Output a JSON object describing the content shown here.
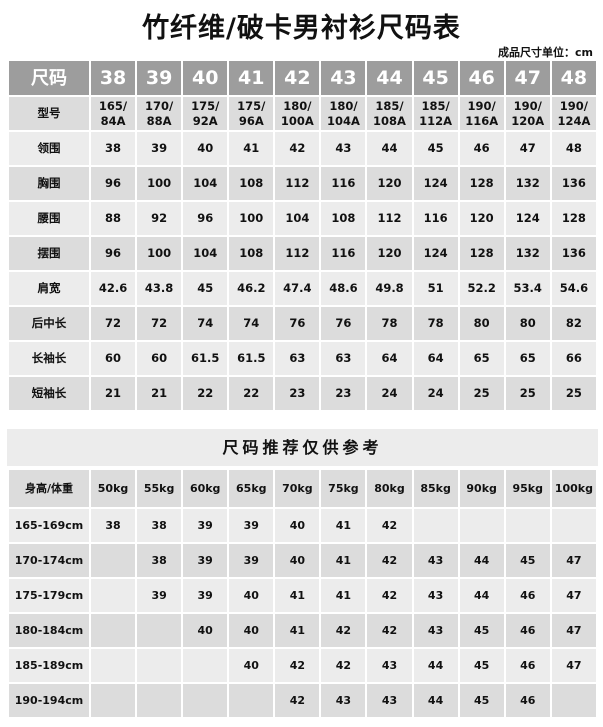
{
  "title": "竹纤维/破卡男衬衫尺码表",
  "unit_note": "成品尺寸单位：cm",
  "size_table": {
    "header": [
      "尺码",
      "38",
      "39",
      "40",
      "41",
      "42",
      "43",
      "44",
      "45",
      "46",
      "47",
      "48"
    ],
    "rows": [
      {
        "label": "型号",
        "values": [
          [
            "165/",
            "84A"
          ],
          [
            "170/",
            "88A"
          ],
          [
            "175/",
            "92A"
          ],
          [
            "175/",
            "96A"
          ],
          [
            "180/",
            "100A"
          ],
          [
            "180/",
            "104A"
          ],
          [
            "185/",
            "108A"
          ],
          [
            "185/",
            "112A"
          ],
          [
            "190/",
            "116A"
          ],
          [
            "190/",
            "120A"
          ],
          [
            "190/",
            "124A"
          ]
        ]
      },
      {
        "label": "领围",
        "values": [
          "38",
          "39",
          "40",
          "41",
          "42",
          "43",
          "44",
          "45",
          "46",
          "47",
          "48"
        ]
      },
      {
        "label": "胸围",
        "values": [
          "96",
          "100",
          "104",
          "108",
          "112",
          "116",
          "120",
          "124",
          "128",
          "132",
          "136"
        ]
      },
      {
        "label": "腰围",
        "values": [
          "88",
          "92",
          "96",
          "100",
          "104",
          "108",
          "112",
          "116",
          "120",
          "124",
          "128"
        ]
      },
      {
        "label": "摆围",
        "values": [
          "96",
          "100",
          "104",
          "108",
          "112",
          "116",
          "120",
          "124",
          "128",
          "132",
          "136"
        ]
      },
      {
        "label": "肩宽",
        "values": [
          "42.6",
          "43.8",
          "45",
          "46.2",
          "47.4",
          "48.6",
          "49.8",
          "51",
          "52.2",
          "53.4",
          "54.6"
        ]
      },
      {
        "label": "后中长",
        "values": [
          "72",
          "72",
          "74",
          "74",
          "76",
          "76",
          "78",
          "78",
          "80",
          "80",
          "82"
        ]
      },
      {
        "label": "长袖长",
        "values": [
          "60",
          "60",
          "61.5",
          "61.5",
          "63",
          "63",
          "64",
          "64",
          "65",
          "65",
          "66"
        ]
      },
      {
        "label": "短袖长",
        "values": [
          "21",
          "21",
          "22",
          "22",
          "23",
          "23",
          "24",
          "24",
          "25",
          "25",
          "25"
        ]
      }
    ]
  },
  "recommend": {
    "title": "尺码推荐仅供参考",
    "header": [
      "身高/体重",
      "50kg",
      "55kg",
      "60kg",
      "65kg",
      "70kg",
      "75kg",
      "80kg",
      "85kg",
      "90kg",
      "95kg",
      "100kg"
    ],
    "rows": [
      {
        "label": "165-169cm",
        "values": [
          "38",
          "38",
          "39",
          "39",
          "40",
          "41",
          "42",
          "",
          "",
          "",
          ""
        ]
      },
      {
        "label": "170-174cm",
        "values": [
          "",
          "38",
          "39",
          "39",
          "40",
          "41",
          "42",
          "43",
          "44",
          "45",
          "47"
        ]
      },
      {
        "label": "175-179cm",
        "values": [
          "",
          "39",
          "39",
          "40",
          "41",
          "41",
          "42",
          "43",
          "44",
          "46",
          "47"
        ]
      },
      {
        "label": "180-184cm",
        "values": [
          "",
          "",
          "40",
          "40",
          "41",
          "42",
          "42",
          "43",
          "45",
          "46",
          "47"
        ]
      },
      {
        "label": "185-189cm",
        "values": [
          "",
          "",
          "",
          "40",
          "42",
          "42",
          "43",
          "44",
          "45",
          "46",
          "47"
        ]
      },
      {
        "label": "190-194cm",
        "values": [
          "",
          "",
          "",
          "",
          "42",
          "43",
          "43",
          "44",
          "45",
          "46",
          ""
        ]
      }
    ]
  },
  "colors": {
    "header": "#9d9d9d",
    "row_dark": "#dcdcdc",
    "row_light": "#ececec"
  }
}
